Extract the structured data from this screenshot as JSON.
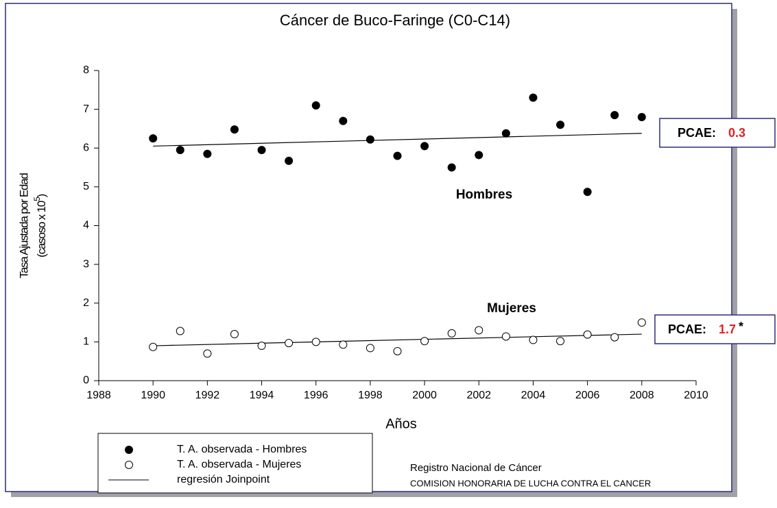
{
  "chart_data": {
    "type": "scatter",
    "title": "Cáncer de Buco-Faringe (C0-C14)",
    "xlabel": "Años",
    "ylabel": "Tasa Ajustada por Edad",
    "ylabel2": "(casoso x 10",
    "ylabel2_sup": "5",
    "ylabel2_end": ")",
    "x": [
      1990,
      1991,
      1992,
      1993,
      1994,
      1995,
      1996,
      1997,
      1998,
      1999,
      2000,
      2001,
      2002,
      2003,
      2004,
      2005,
      2006,
      2007,
      2008
    ],
    "series": [
      {
        "name": "T. A. observada - Hombres",
        "color": "#000000",
        "fill": true,
        "values": [
          6.25,
          5.95,
          5.85,
          6.48,
          5.95,
          5.67,
          7.1,
          6.7,
          6.22,
          5.8,
          6.05,
          5.5,
          5.82,
          6.38,
          7.3,
          6.6,
          4.87,
          6.85,
          6.8
        ]
      },
      {
        "name": "T. A. observada - Mujeres",
        "color": "#000000",
        "fill": false,
        "values": [
          0.87,
          1.28,
          0.7,
          1.2,
          0.9,
          0.97,
          1.0,
          0.93,
          0.84,
          0.76,
          1.02,
          1.22,
          1.3,
          1.14,
          1.05,
          1.02,
          1.19,
          1.12,
          1.5
        ]
      }
    ],
    "regression": {
      "name": "regresión Joinpoint",
      "color": "#000000",
      "lines": [
        {
          "x": [
            1990,
            2008
          ],
          "values": [
            6.05,
            6.38
          ]
        },
        {
          "x": [
            1990,
            2008
          ],
          "values": [
            0.9,
            1.2
          ]
        }
      ]
    },
    "xlim": [
      1988,
      2010
    ],
    "xticks": [
      1988,
      1990,
      1992,
      1994,
      1996,
      1998,
      2000,
      2002,
      2004,
      2006,
      2008,
      2010
    ],
    "ylim": [
      0,
      8
    ],
    "yticks": [
      0,
      1,
      2,
      3,
      4,
      5,
      6,
      7,
      8
    ],
    "annotations": {
      "hombres": "Hombres",
      "mujeres": "Mujeres",
      "pcae_h_label": "PCAE:",
      "pcae_h_value": "0.3",
      "pcae_m_label": "PCAE:",
      "pcae_m_value": "1.7",
      "pcae_m_mark": "*"
    },
    "credits": [
      "Registro Nacional de Cáncer",
      "COMISION HONORARIA DE LUCHA CONTRA EL CANCER"
    ]
  }
}
